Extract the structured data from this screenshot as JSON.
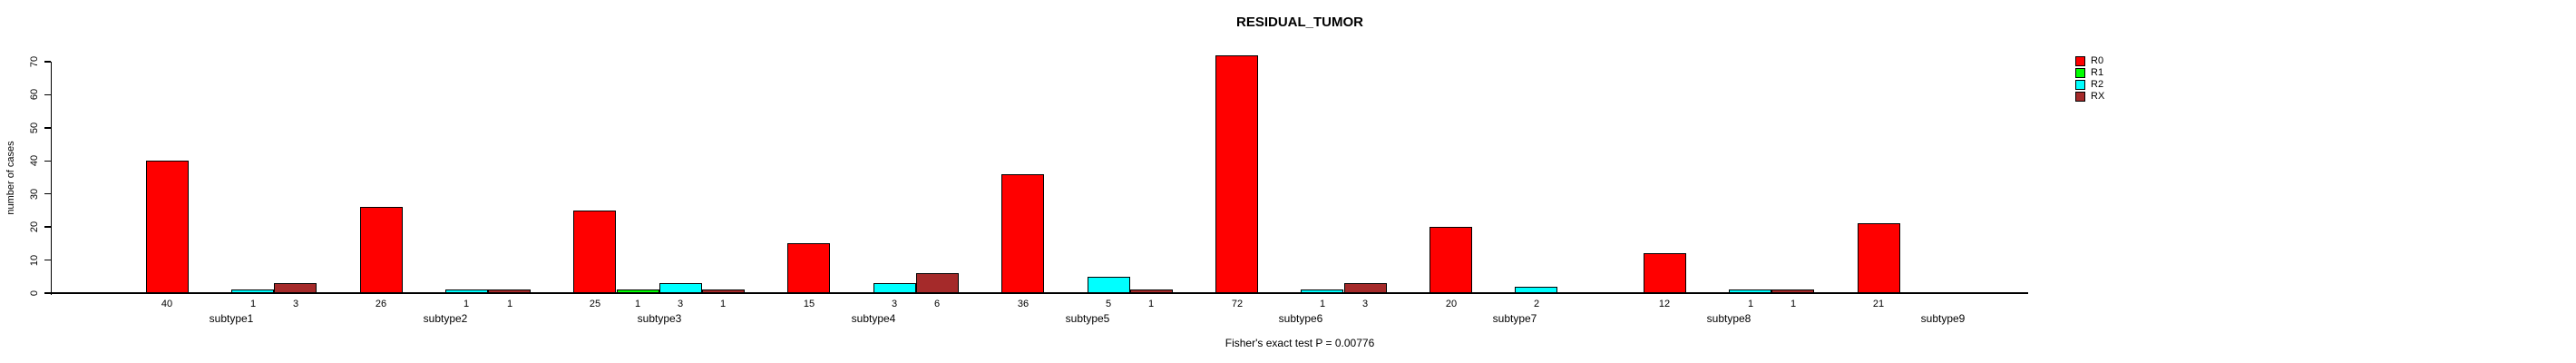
{
  "chart_data": {
    "type": "bar",
    "title": "RESIDUAL_TUMOR",
    "ylabel": "number of cases",
    "xlabel": "",
    "annotation": "Fisher's exact test P = 0.00776",
    "categories": [
      "subtype1",
      "subtype2",
      "subtype3",
      "subtype4",
      "subtype5",
      "subtype6",
      "subtype7",
      "subtype8",
      "subtype9"
    ],
    "series": [
      {
        "name": "R0",
        "color": "#FF0000",
        "values": [
          40,
          26,
          25,
          15,
          36,
          72,
          20,
          12,
          21
        ]
      },
      {
        "name": "R1",
        "color": "#00FF00",
        "values": [
          0,
          0,
          1,
          0,
          0,
          0,
          0,
          0,
          0
        ]
      },
      {
        "name": "R2",
        "color": "#00FFFF",
        "values": [
          1,
          1,
          3,
          3,
          5,
          1,
          2,
          1,
          0
        ]
      },
      {
        "name": "RX",
        "color": "#A52A2A",
        "values": [
          3,
          1,
          1,
          6,
          1,
          3,
          0,
          1,
          0
        ]
      }
    ],
    "ylim": [
      0,
      72
    ],
    "yticks": [
      0,
      10,
      20,
      30,
      40,
      50,
      60,
      70
    ],
    "grid": false,
    "legend_position": "top-right",
    "bar_value_labels": true,
    "axis_color": "#000000",
    "background_color": "#FFFFFF"
  }
}
